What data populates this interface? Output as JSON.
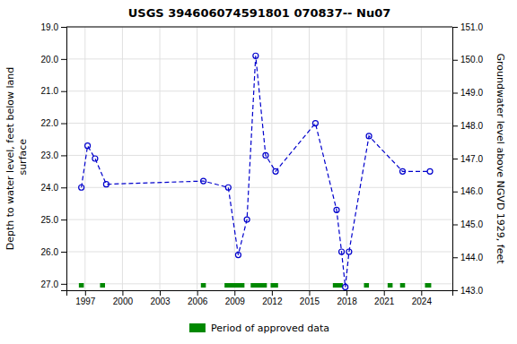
{
  "chart_data": {
    "type": "line",
    "title": "USGS 394606074591801 070837-- Nu07",
    "y_label": "Depth to water level, feet below land\n surface",
    "y2_label": "Groundwater level above NGVD 1929, feet",
    "x": [
      1996.7,
      1997.2,
      1997.8,
      1998.7,
      2006.5,
      2008.5,
      2009.3,
      2010.0,
      2010.7,
      2011.5,
      2012.3,
      2015.5,
      2017.2,
      2017.6,
      2017.9,
      2018.2,
      2019.8,
      2022.5,
      2024.7
    ],
    "values": [
      24.0,
      22.7,
      23.1,
      23.9,
      23.8,
      24.0,
      26.1,
      25.0,
      19.9,
      23.0,
      23.5,
      22.0,
      24.7,
      26.0,
      27.1,
      26.0,
      22.4,
      23.5,
      23.5
    ],
    "color": "#0000cc",
    "line_style": "dashed",
    "marker": "circle",
    "xlim": [
      1995.5,
      2026.5
    ],
    "xticks": [
      1997,
      2000,
      2003,
      2006,
      2009,
      2012,
      2015,
      2018,
      2021,
      2024
    ],
    "ylim": [
      27.2,
      19.0
    ],
    "yticks": [
      {
        "value": 19.0,
        "label": "19.0"
      },
      {
        "value": 20.0,
        "label": "20.0"
      },
      {
        "value": 21.0,
        "label": "21.0"
      },
      {
        "value": 22.0,
        "label": "22.0"
      },
      {
        "value": 23.0,
        "label": "23.0"
      },
      {
        "value": 24.0,
        "label": "24.0"
      },
      {
        "value": 25.0,
        "label": "25.0"
      },
      {
        "value": 26.0,
        "label": "26.0"
      },
      {
        "value": 27.0,
        "label": "27.0"
      }
    ],
    "y2lim": [
      143.0,
      151.0
    ],
    "y2ticks": [
      {
        "value": 143.0,
        "label": "143.0"
      },
      {
        "value": 144.0,
        "label": "144.0"
      },
      {
        "value": 145.0,
        "label": "145.0"
      },
      {
        "value": 146.0,
        "label": "146.0"
      },
      {
        "value": 147.0,
        "label": "147.0"
      },
      {
        "value": 148.0,
        "label": "148.0"
      },
      {
        "value": 149.0,
        "label": "149.0"
      },
      {
        "value": 150.0,
        "label": "150.0"
      },
      {
        "value": 151.0,
        "label": "151.0"
      }
    ],
    "spans": {
      "name": "Period of approved data",
      "color": "#008800",
      "ranges": [
        [
          1996.5,
          1996.9
        ],
        [
          1998.2,
          1998.6
        ],
        [
          2006.3,
          2006.7
        ],
        [
          2008.2,
          2009.8
        ],
        [
          2010.3,
          2011.6
        ],
        [
          2011.9,
          2012.5
        ],
        [
          2016.9,
          2017.7
        ],
        [
          2019.4,
          2019.8
        ],
        [
          2021.3,
          2021.7
        ],
        [
          2022.3,
          2022.7
        ],
        [
          2024.3,
          2024.8
        ]
      ]
    },
    "grid": true,
    "legend": "bottom"
  }
}
